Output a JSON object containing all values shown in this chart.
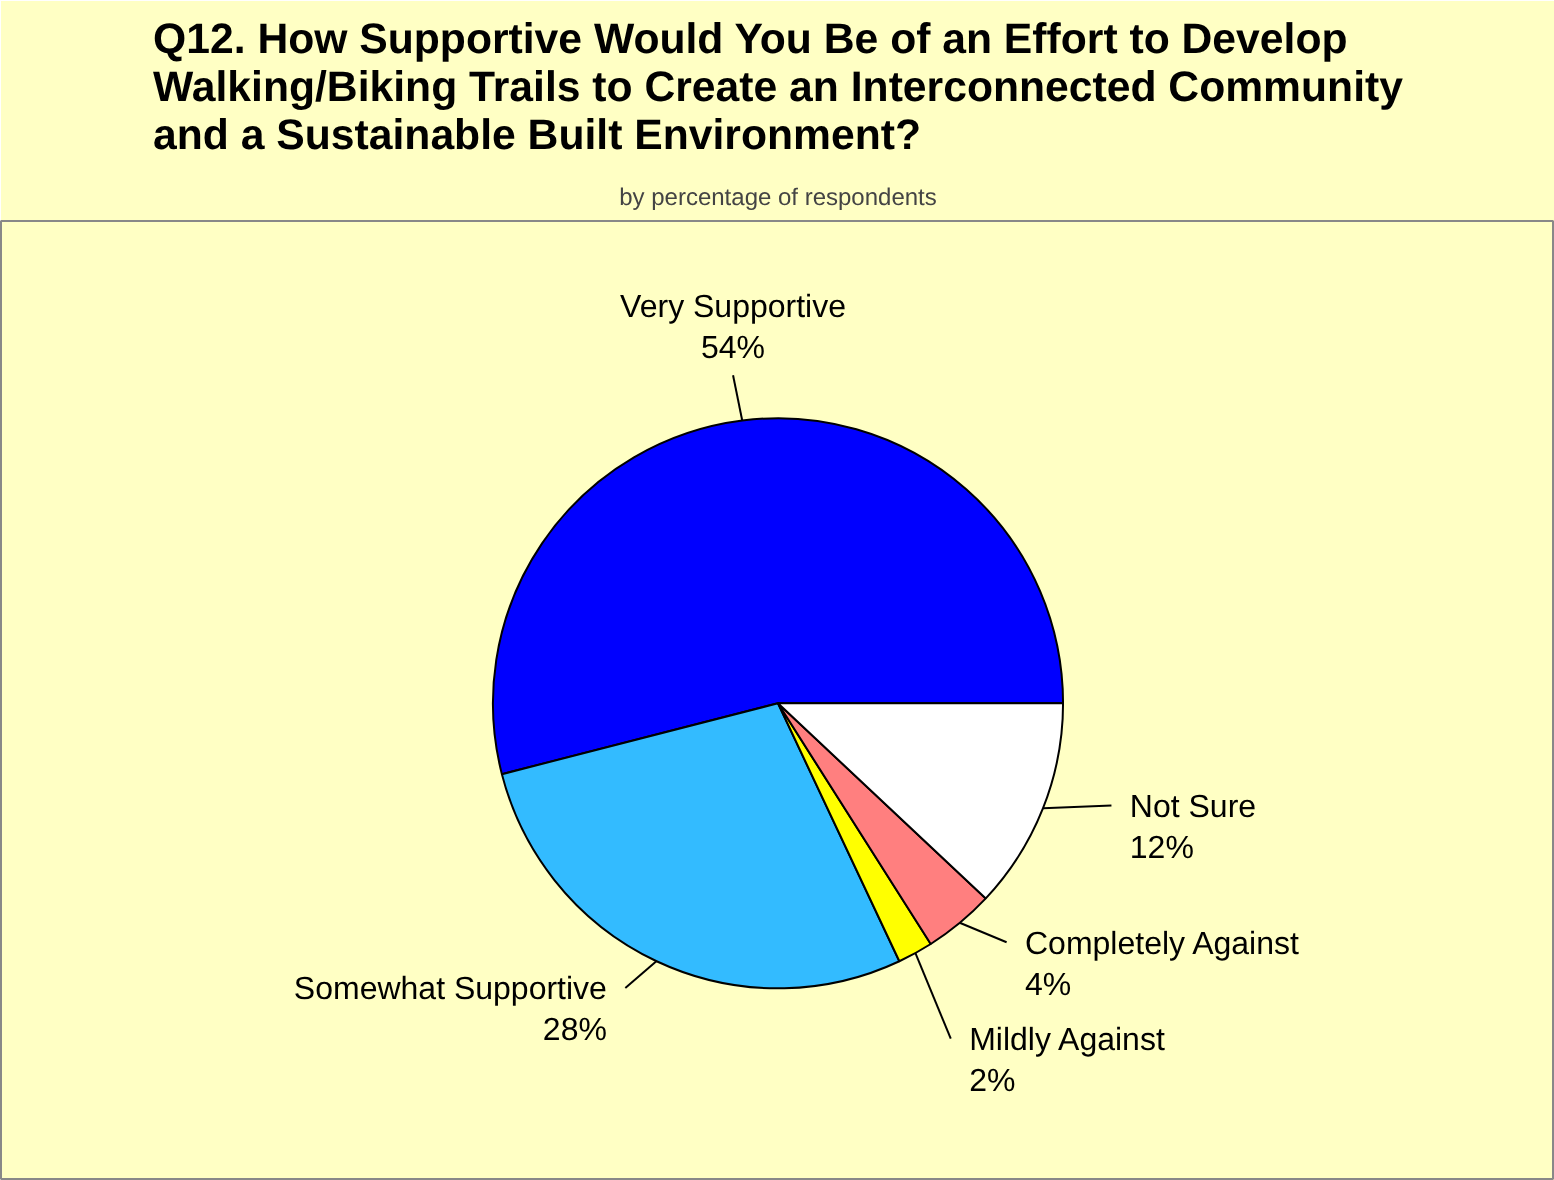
{
  "chart_data": {
    "type": "pie",
    "title": "Q12. How Supportive Would You Be of an Effort to Develop\nWalking/Biking Trails to Create an Interconnected Community\nand a Sustainable Built Environment?",
    "subtitle": "by percentage of respondents",
    "categories": [
      "Very Supportive",
      "Somewhat Supportive",
      "Mildly Against",
      "Completely Against",
      "Not Sure"
    ],
    "values": [
      54,
      28,
      2,
      4,
      12
    ],
    "value_labels": [
      "54%",
      "28%",
      "2%",
      "4%",
      "12%"
    ],
    "colors": [
      "#0000ff",
      "#33bbff",
      "#ffff00",
      "#ff7f7f",
      "#ffffff"
    ]
  }
}
